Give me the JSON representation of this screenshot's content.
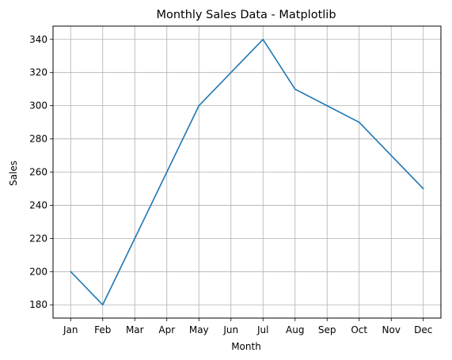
{
  "chart_data": {
    "type": "line",
    "title": "Monthly Sales Data - Matplotlib",
    "xlabel": "Month",
    "ylabel": "Sales",
    "categories": [
      "Jan",
      "Feb",
      "Mar",
      "Apr",
      "May",
      "Jun",
      "Jul",
      "Aug",
      "Sep",
      "Oct",
      "Nov",
      "Dec"
    ],
    "series": [
      {
        "values": [
          200,
          180,
          220,
          260,
          300,
          320,
          340,
          310,
          300,
          290,
          270,
          250
        ],
        "color": "#1f77b4"
      }
    ],
    "yticks": [
      180,
      200,
      220,
      240,
      260,
      280,
      300,
      320,
      340
    ],
    "ylim": [
      172,
      348
    ],
    "grid": true,
    "legend": false,
    "grid_color": "#b0b0b0",
    "axis_color": "#000000"
  }
}
